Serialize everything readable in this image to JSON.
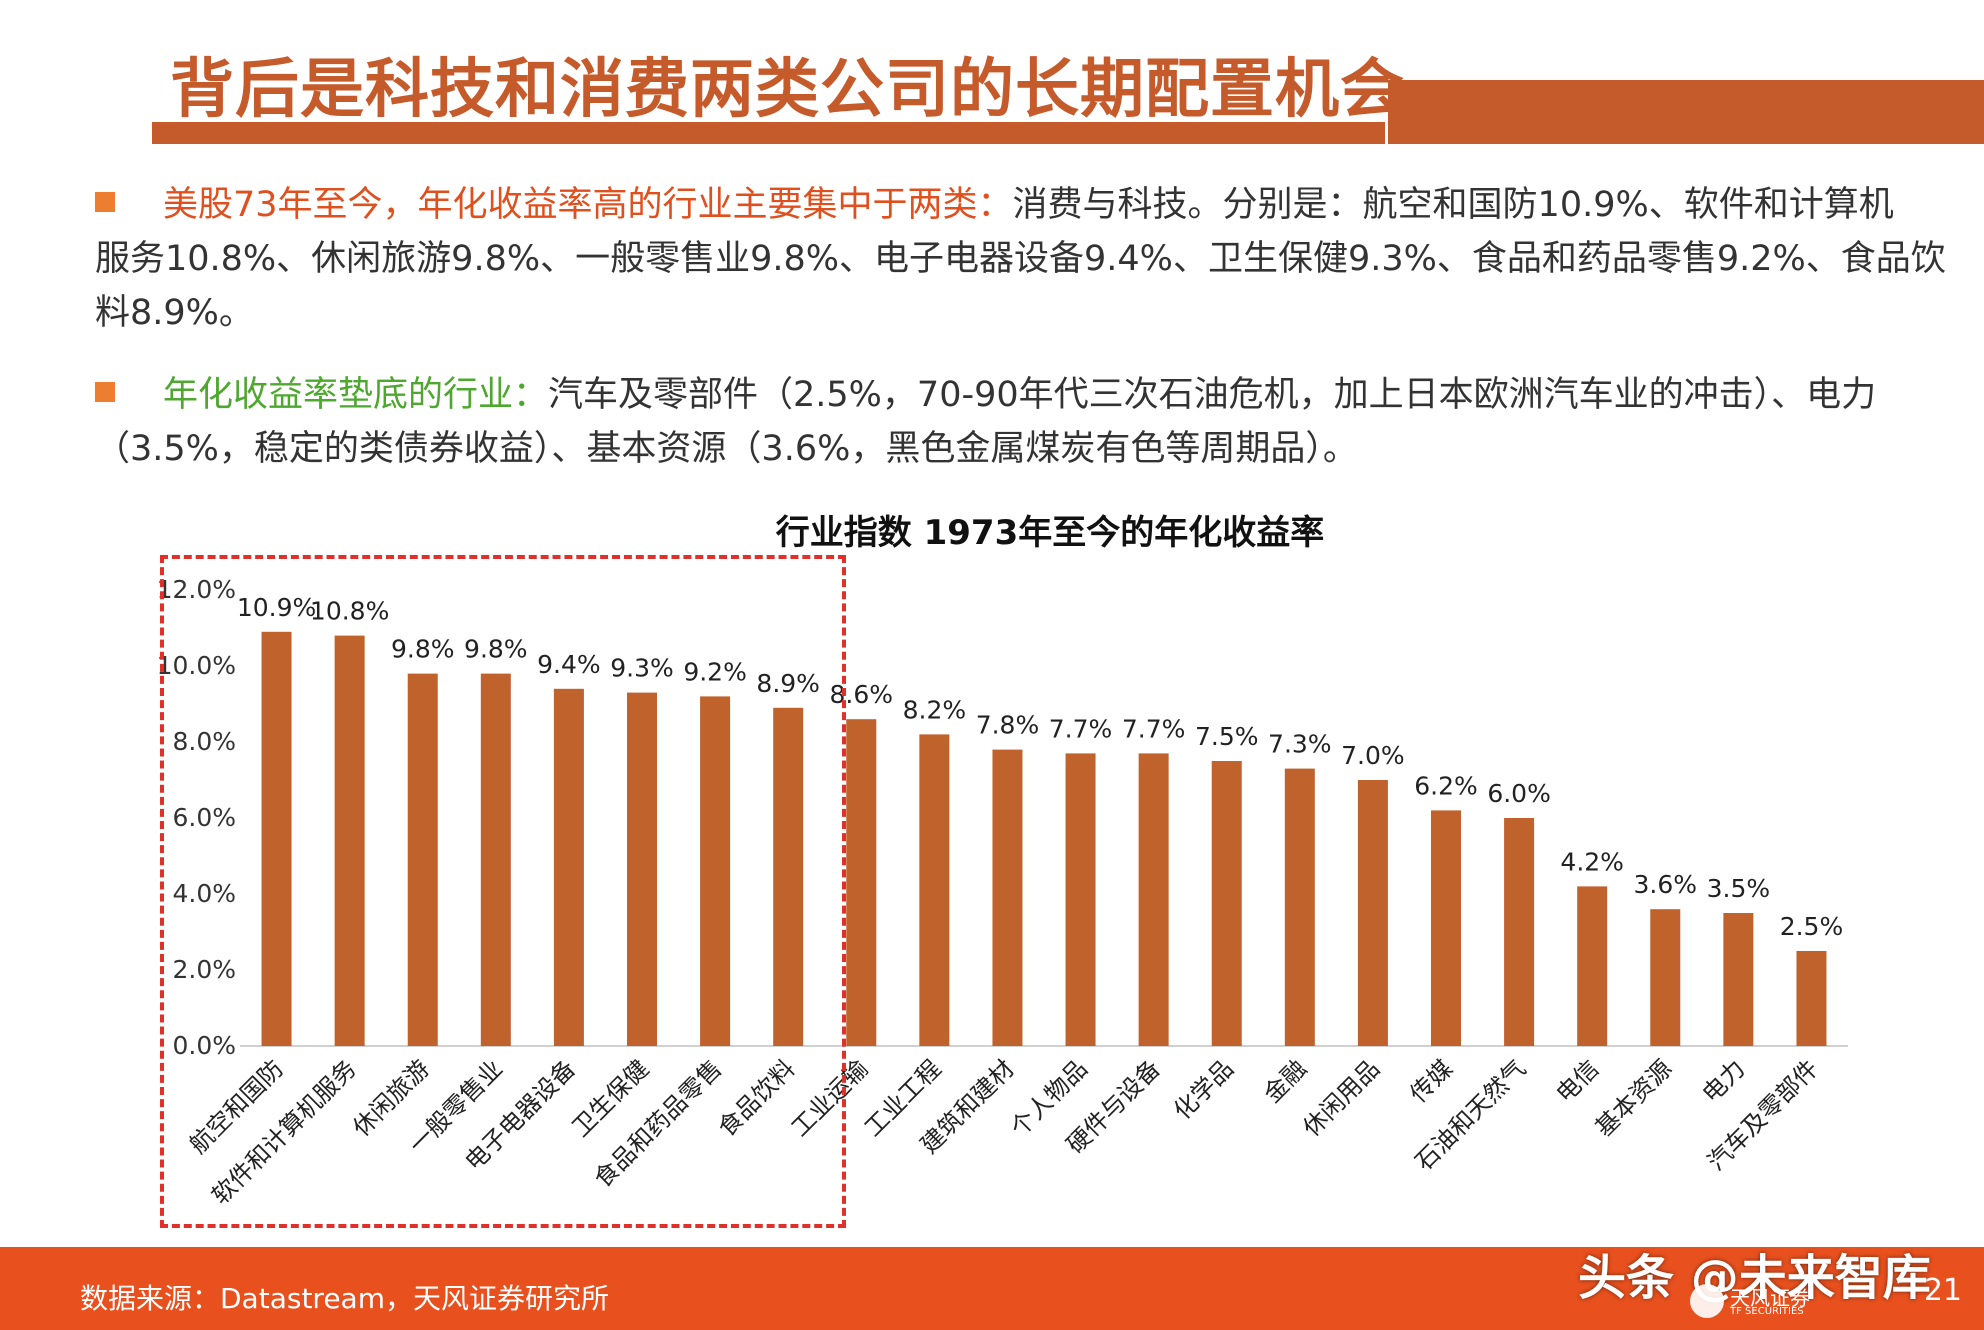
{
  "page": {
    "title": "背后是科技和消费两类公司的长期配置机会",
    "para1": {
      "lead": "美股73年至今，年化收益率高的行业主要集中于两类：",
      "line1": "消费与科技。分别是：航空和国防10.9%、软件和计算机",
      "line2": "服务10.8%、休闲旅游9.8%、一般零售业9.8%、电子电器设备9.4%、卫生保健9.3%、食品和药品零售9.2%、食品饮",
      "line3": "料8.9%。"
    },
    "para2": {
      "lead": "年化收益率垫底的行业：",
      "line1": "汽车及零部件（2.5%，70-90年代三次石油危机，加上日本欧洲汽车业的冲击）、电力",
      "line2": "（3.5%，稳定的类债券收益）、基本资源（3.6%，黑色金属煤炭有色等周期品）。"
    },
    "footer_source": "数据来源：Datastream，天风证券研究所",
    "page_number": "21",
    "watermark": "头条 @未来智库",
    "logo_text": "天风证券",
    "logo_sub": "TF SECURITIES",
    "colors": {
      "accent": "#C55A2A",
      "bar": "#C0622C",
      "footer": "#E8501E",
      "box": "#E0302A",
      "green": "#4EA72E"
    }
  },
  "chart_data": {
    "type": "bar",
    "title": "行业指数 1973年至今的年化收益率",
    "categories": [
      "航空和国防",
      "软件和计算机服务",
      "休闲旅游",
      "一般零售业",
      "电子电器设备",
      "卫生保健",
      "食品和药品零售",
      "食品饮料",
      "工业运输",
      "工业工程",
      "建筑和建材",
      "个人物品",
      "硬件与设备",
      "化学品",
      "金融",
      "休闲用品",
      "传媒",
      "石油和天然气",
      "电信",
      "基本资源",
      "电力",
      "汽车及零部件"
    ],
    "values": [
      10.9,
      10.8,
      9.8,
      9.8,
      9.4,
      9.3,
      9.2,
      8.9,
      8.6,
      8.2,
      7.8,
      7.7,
      7.7,
      7.5,
      7.3,
      7.0,
      6.2,
      6.0,
      4.2,
      3.6,
      3.5,
      2.5
    ],
    "data_labels": [
      "10.9%",
      "10.8%",
      "9.8%",
      "9.8%",
      "9.4%",
      "9.3%",
      "9.2%",
      "8.9%",
      "8.6%",
      "8.2%",
      "7.8%",
      "7.7%",
      "7.7%",
      "7.5%",
      "7.3%",
      "7.0%",
      "6.2%",
      "6.0%",
      "4.2%",
      "3.6%",
      "3.5%",
      "2.5%"
    ],
    "y_ticks": [
      "0.0%",
      "2.0%",
      "4.0%",
      "6.0%",
      "8.0%",
      "10.0%",
      "12.0%"
    ],
    "ylim": [
      0,
      12
    ],
    "grid": false,
    "legend": "none",
    "highlighted_range": "航空和国防 – 食品饮料"
  }
}
